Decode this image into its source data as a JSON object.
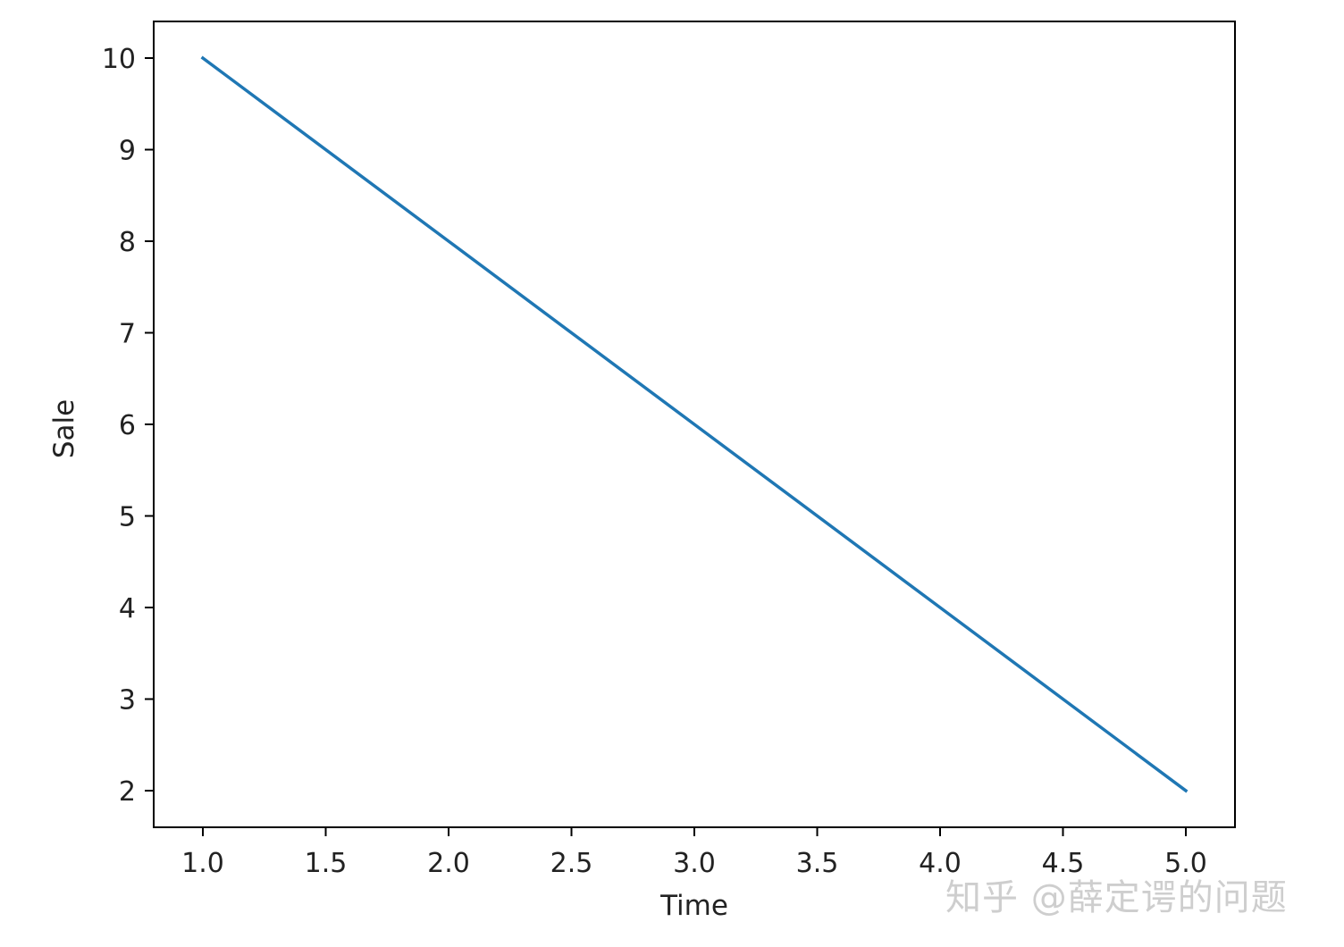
{
  "chart_data": {
    "type": "line",
    "title": "",
    "xlabel": "Time",
    "ylabel": "Sale",
    "x": [
      1,
      2,
      3,
      4,
      5
    ],
    "series": [
      {
        "values": [
          10,
          8,
          6,
          4,
          2
        ],
        "color": "#1f77b4"
      }
    ],
    "xlim": [
      0.8,
      5.2
    ],
    "ylim": [
      1.6,
      10.4
    ],
    "xticks": [
      1.0,
      1.5,
      2.0,
      2.5,
      3.0,
      3.5,
      4.0,
      4.5,
      5.0
    ],
    "xtick_labels": [
      "1.0",
      "1.5",
      "2.0",
      "2.5",
      "3.0",
      "3.5",
      "4.0",
      "4.5",
      "5.0"
    ],
    "yticks": [
      2,
      3,
      4,
      5,
      6,
      7,
      8,
      9,
      10
    ],
    "ytick_labels": [
      "2",
      "3",
      "4",
      "5",
      "6",
      "7",
      "8",
      "9",
      "10"
    ],
    "grid": false,
    "legend": "none"
  },
  "watermark": {
    "text": "知乎 @薛定谔的问题"
  }
}
